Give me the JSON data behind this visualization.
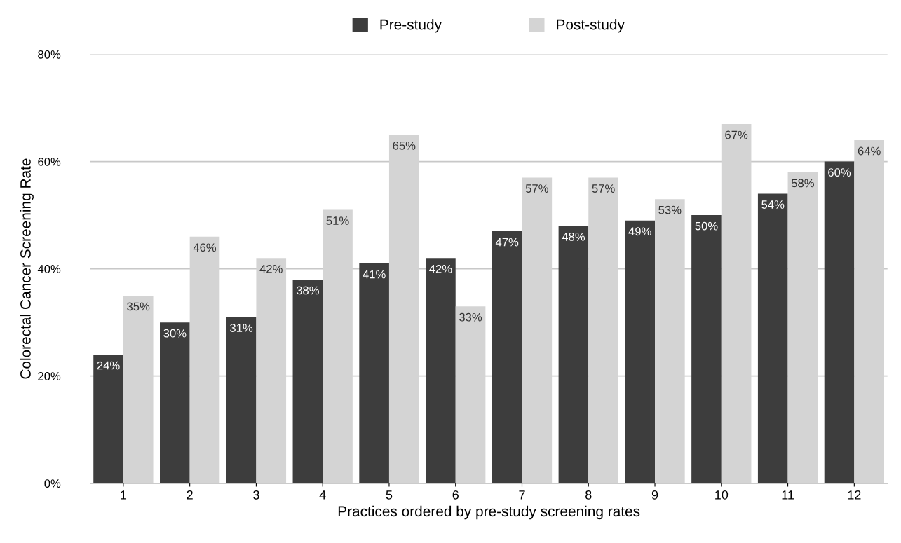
{
  "chart_data": {
    "type": "bar",
    "xlabel": "Practices ordered by pre-study screening rates",
    "ylabel": "Colorectal Cancer Screening Rate",
    "categories": [
      "1",
      "2",
      "3",
      "4",
      "5",
      "6",
      "7",
      "8",
      "9",
      "10",
      "11",
      "12"
    ],
    "series": [
      {
        "name": "Pre-study",
        "color": "#3d3d3d",
        "values": [
          24,
          30,
          31,
          38,
          41,
          42,
          47,
          48,
          49,
          50,
          54,
          60
        ],
        "value_labels": [
          "24%",
          "30%",
          "31%",
          "38%",
          "41%",
          "42%",
          "47%",
          "48%",
          "49%",
          "50%",
          "54%",
          "60%"
        ]
      },
      {
        "name": "Post-study",
        "color": "#d4d4d4",
        "values": [
          35,
          46,
          42,
          51,
          65,
          33,
          57,
          57,
          53,
          67,
          58,
          64
        ],
        "value_labels": [
          "35%",
          "46%",
          "42%",
          "51%",
          "65%",
          "33%",
          "57%",
          "57%",
          "53%",
          "67%",
          "58%",
          "64%"
        ]
      }
    ],
    "ylim": [
      0,
      80
    ],
    "yticks": [
      {
        "value": 0,
        "label": "0%"
      },
      {
        "value": 20,
        "label": "20%"
      },
      {
        "value": 40,
        "label": "40%"
      },
      {
        "value": 60,
        "label": "60%"
      },
      {
        "value": 80,
        "label": "80%"
      }
    ],
    "grid": "y",
    "legend": "top"
  }
}
